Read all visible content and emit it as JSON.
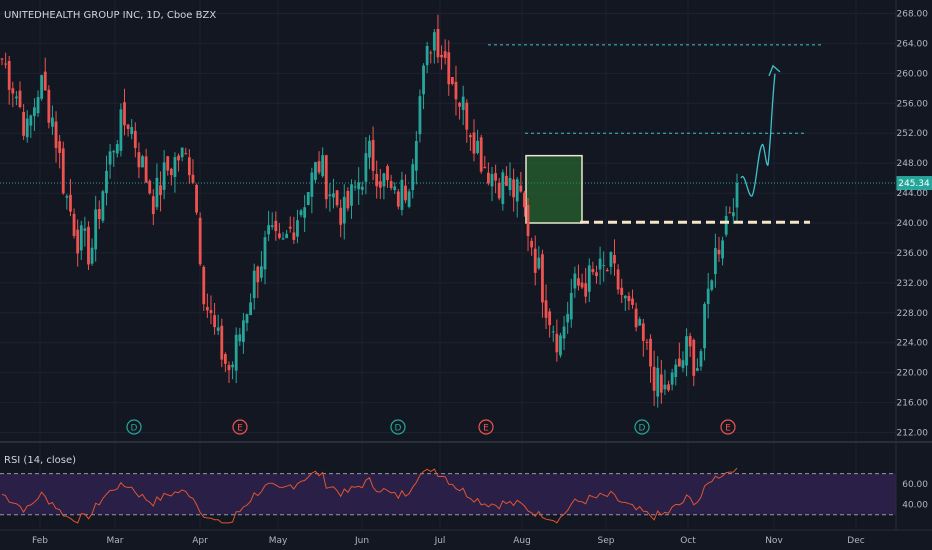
{
  "header": {
    "title": "UNITEDHEALTH GROUP INC, 1D, Cboe BZX"
  },
  "colors": {
    "background": "#131722",
    "grid": "#1e2230",
    "up": "#26a69a",
    "down": "#ef5350",
    "current_line": "#26a69a",
    "price_badge": "#26a69a",
    "rsi_line": "#e0552f",
    "rsi_band": "#2a1f47",
    "box_fill": "#2e7d32",
    "box_border": "#e8e8d0",
    "target_line": "#3fc1c9",
    "support_line": "#f5e6c8",
    "event_circle": "#ef5350",
    "dividend_circle": "#26a69a"
  },
  "price_axis": {
    "ticks": [
      "268.00",
      "264.00",
      "260.00",
      "256.00",
      "252.00",
      "248.00",
      "244.00",
      "240.00",
      "236.00",
      "232.00",
      "228.00",
      "224.00",
      "220.00",
      "216.00",
      "212.00"
    ]
  },
  "current_price": {
    "label": "245.34",
    "value": 245.34
  },
  "rsi": {
    "title": "RSI (14, close)",
    "ticks": [
      "60.00",
      "40.00"
    ],
    "upper": 70,
    "lower": 30
  },
  "x_axis": {
    "ticks": [
      "Feb",
      "Mar",
      "Apr",
      "May",
      "Jun",
      "Jul",
      "Aug",
      "Sep",
      "Oct",
      "Nov",
      "Dec"
    ]
  },
  "events": [
    {
      "letter": "D",
      "kind": "dividend",
      "date": "Mar"
    },
    {
      "letter": "E",
      "kind": "earnings",
      "date": "Apr"
    },
    {
      "letter": "D",
      "kind": "dividend",
      "date": "Jun"
    },
    {
      "letter": "E",
      "kind": "earnings",
      "date": "Jul"
    },
    {
      "letter": "D",
      "kind": "dividend",
      "date": "Sep"
    },
    {
      "letter": "E",
      "kind": "earnings",
      "date": "Oct"
    }
  ],
  "chart_data": {
    "type": "candlestick",
    "symbol": "UNITEDHEALTH GROUP INC",
    "interval": "1D",
    "ylim": [
      211,
      269
    ],
    "series": [
      {
        "date": "Jan",
        "close": 262
      },
      {
        "date": "Feb",
        "close": 258
      },
      {
        "date": "Feb",
        "close": 252
      },
      {
        "date": "Feb",
        "close": 259
      },
      {
        "date": "Feb",
        "close": 254
      },
      {
        "date": "Mar",
        "close": 244
      },
      {
        "date": "Mar",
        "close": 238
      },
      {
        "date": "Mar",
        "close": 236
      },
      {
        "date": "Mar",
        "close": 245
      },
      {
        "date": "Mar",
        "close": 252
      },
      {
        "date": "Mar",
        "close": 254
      },
      {
        "date": "Mar",
        "close": 248
      },
      {
        "date": "Mar",
        "close": 243
      },
      {
        "date": "Apr",
        "close": 247
      },
      {
        "date": "Apr",
        "close": 249
      },
      {
        "date": "Apr",
        "close": 248
      },
      {
        "date": "Apr",
        "close": 230
      },
      {
        "date": "Apr",
        "close": 224
      },
      {
        "date": "Apr",
        "close": 220
      },
      {
        "date": "May",
        "close": 227
      },
      {
        "date": "May",
        "close": 233
      },
      {
        "date": "May",
        "close": 238
      },
      {
        "date": "May",
        "close": 236
      },
      {
        "date": "May",
        "close": 240
      },
      {
        "date": "May",
        "close": 244
      },
      {
        "date": "Jun",
        "close": 248
      },
      {
        "date": "Jun",
        "close": 244
      },
      {
        "date": "Jun",
        "close": 241
      },
      {
        "date": "Jun",
        "close": 245
      },
      {
        "date": "Jun",
        "close": 249
      },
      {
        "date": "Jun",
        "close": 246
      },
      {
        "date": "Jun",
        "close": 243
      },
      {
        "date": "Jul",
        "close": 245
      },
      {
        "date": "Jul",
        "close": 257
      },
      {
        "date": "Jul",
        "close": 266
      },
      {
        "date": "Jul",
        "close": 262
      },
      {
        "date": "Jul",
        "close": 257
      },
      {
        "date": "Jul",
        "close": 253
      },
      {
        "date": "Aug",
        "close": 248
      },
      {
        "date": "Aug",
        "close": 246
      },
      {
        "date": "Aug",
        "close": 245
      },
      {
        "date": "Aug",
        "close": 243
      },
      {
        "date": "Aug",
        "close": 236
      },
      {
        "date": "Aug",
        "close": 229
      },
      {
        "date": "Sep",
        "close": 224
      },
      {
        "date": "Sep",
        "close": 231
      },
      {
        "date": "Sep",
        "close": 232
      },
      {
        "date": "Sep",
        "close": 233
      },
      {
        "date": "Sep",
        "close": 234
      },
      {
        "date": "Sep",
        "close": 230
      },
      {
        "date": "Sep",
        "close": 226
      },
      {
        "date": "Oct",
        "close": 222
      },
      {
        "date": "Oct",
        "close": 217
      },
      {
        "date": "Oct",
        "close": 219
      },
      {
        "date": "Oct",
        "close": 223
      },
      {
        "date": "Oct",
        "close": 221
      },
      {
        "date": "Oct",
        "close": 234
      },
      {
        "date": "Oct",
        "close": 240
      },
      {
        "date": "Oct",
        "close": 245.34
      }
    ],
    "annotations": {
      "resistance_levels": [
        263.8,
        252.0
      ],
      "support_level": 240.1,
      "consolidation_box": {
        "from": "Aug",
        "to": "Aug",
        "high": 249,
        "low": 240
      },
      "projection_target": 261
    }
  }
}
